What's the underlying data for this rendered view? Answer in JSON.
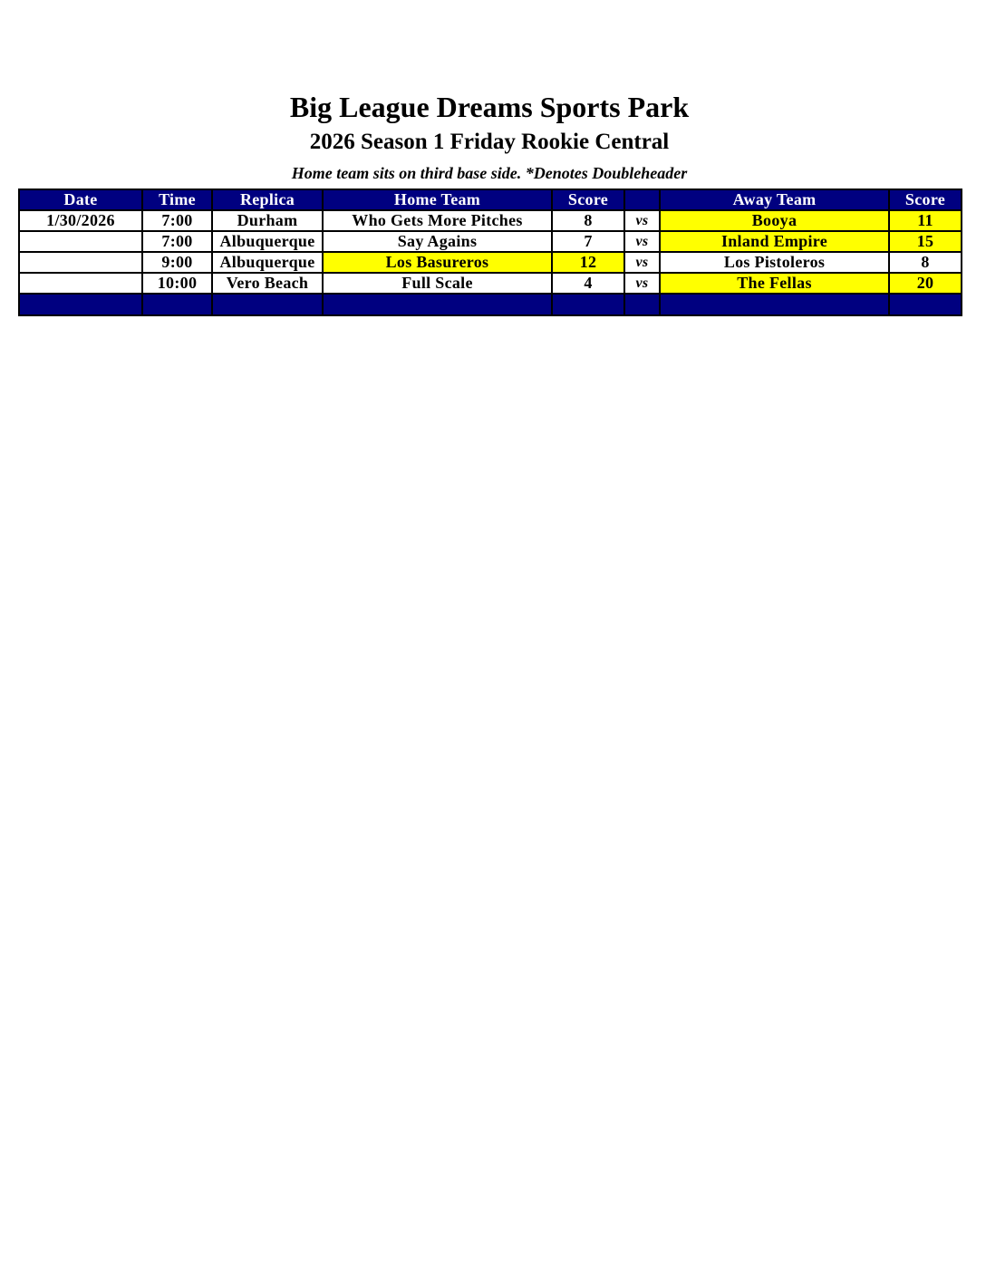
{
  "header": {
    "title": "Big League Dreams Sports Park",
    "subtitle": "2026 Season 1 Friday Rookie Central",
    "note": "Home team sits on third base side.  *Denotes Doubleheader"
  },
  "colors": {
    "header_bg": "#000080",
    "winner_highlight": "#ffff00"
  },
  "table": {
    "columns": [
      "Date",
      "Time",
      "Replica",
      "Home Team",
      "Score",
      "",
      "Away Team",
      "Score"
    ],
    "rows": [
      {
        "date": "1/30/2026",
        "time": "7:00",
        "replica": "Durham",
        "home": "Who Gets More Pitches",
        "home_score": "8",
        "vs": "vs",
        "away": "Booya",
        "away_score": "11",
        "winner": "away"
      },
      {
        "date": "",
        "time": "7:00",
        "replica": "Albuquerque",
        "home": "Say Agains",
        "home_score": "7",
        "vs": "vs",
        "away": "Inland Empire",
        "away_score": "15",
        "winner": "away"
      },
      {
        "date": "",
        "time": "9:00",
        "replica": "Albuquerque",
        "home": "Los Basureros",
        "home_score": "12",
        "vs": "vs",
        "away": "Los Pistoleros",
        "away_score": "8",
        "winner": "home"
      },
      {
        "date": "",
        "time": "10:00",
        "replica": "Vero Beach",
        "home": "Full Scale",
        "home_score": "4",
        "vs": "vs",
        "away": "The Fellas",
        "away_score": "20",
        "winner": "away"
      }
    ]
  }
}
